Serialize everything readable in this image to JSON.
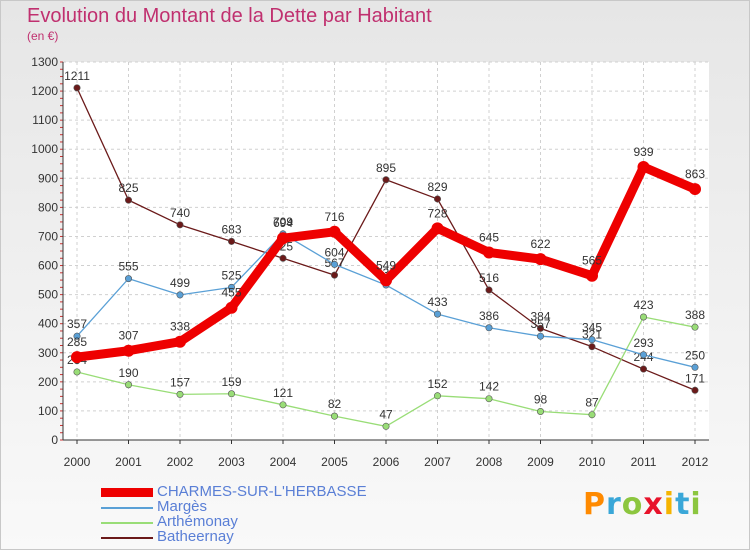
{
  "header": {
    "title": "Evolution du Montant de la Dette par Habitant",
    "subtitle": "(en €)"
  },
  "brand": {
    "name": "Proxiti"
  },
  "chart_data": {
    "type": "line",
    "title": "Evolution du Montant de la Dette par Habitant",
    "ylabel": "(en €)",
    "xlabel": "",
    "x": [
      "2000",
      "2001",
      "2002",
      "2003",
      "2004",
      "2005",
      "2006",
      "2007",
      "2008",
      "2009",
      "2010",
      "2011",
      "2012"
    ],
    "ylim": [
      0,
      1300
    ],
    "yticks": [
      0,
      100,
      200,
      300,
      400,
      500,
      600,
      700,
      800,
      900,
      1000,
      1100,
      1200,
      1300
    ],
    "grid": true,
    "legend_position": "bottom-left",
    "series": [
      {
        "name": "Batheernay",
        "color": "#6b1a1a",
        "values": [
          1211,
          825,
          740,
          683,
          625,
          567,
          895,
          829,
          516,
          384,
          321,
          244,
          171
        ]
      },
      {
        "name": "Arthémonay",
        "color": "#99dd77",
        "values": [
          234,
          190,
          157,
          159,
          121,
          82,
          47,
          152,
          142,
          98,
          87,
          423,
          388
        ]
      },
      {
        "name": "Margès",
        "color": "#5aa0d6",
        "values": [
          357,
          555,
          499,
          525,
          709,
          604,
          533,
          433,
          386,
          357,
          345,
          293,
          250
        ]
      },
      {
        "name": "CHARMES-SUR-L'HERBASSE",
        "color": "#ee0000",
        "values": [
          285,
          307,
          338,
          455,
          694,
          716,
          549,
          728,
          645,
          622,
          565,
          939,
          863
        ]
      }
    ]
  }
}
